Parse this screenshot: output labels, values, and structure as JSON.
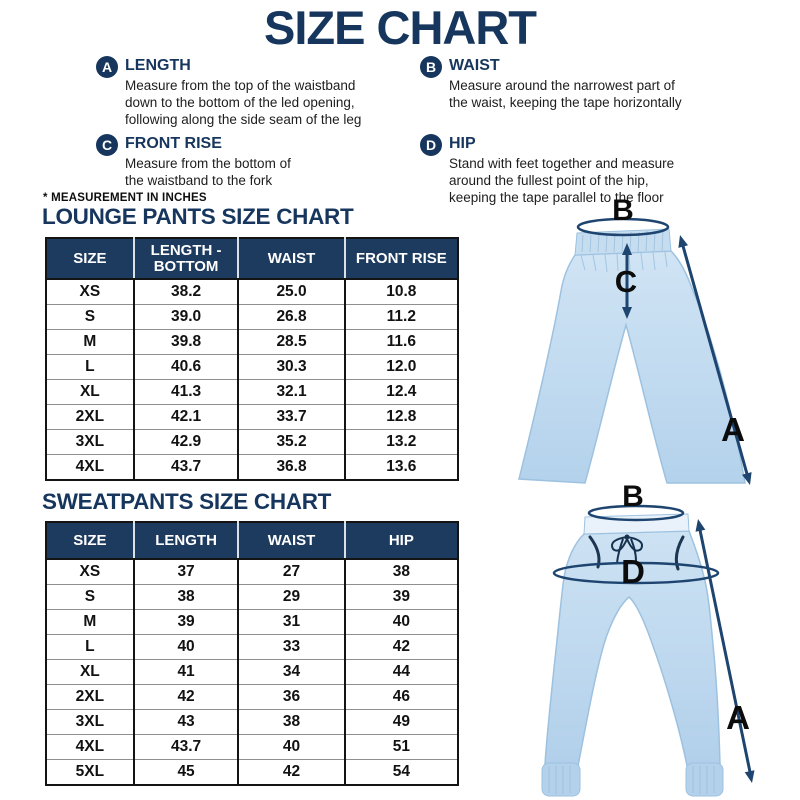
{
  "title": "SIZE CHART",
  "colors": {
    "navy": "#17365d",
    "table_header_bg": "#1d3a5f",
    "arrow": "#1e4470",
    "pants_fill": "#bdd8ee",
    "pants_outline": "#9dc2e0"
  },
  "definitions": [
    {
      "letter": "A",
      "term": "LENGTH",
      "description": "Measure from the top of the waistband down to the bottom of the led opening, following along the side seam of the leg"
    },
    {
      "letter": "B",
      "term": "WAIST",
      "description": "Measure around the narrowest part of the waist, keeping the tape horizontally"
    },
    {
      "letter": "C",
      "term": "FRONT RISE",
      "description": "Measure from the bottom of the waistband to the fork"
    },
    {
      "letter": "D",
      "term": "HIP",
      "description": "Stand with feet together and measure around the fullest point of the hip, keeping the tape parallel to the floor"
    }
  ],
  "note": "* MEASUREMENT IN INCHES",
  "lounge_chart": {
    "heading": "LOUNGE PANTS SIZE CHART",
    "columns": [
      "SIZE",
      "LENGTH - BOTTOM",
      "WAIST",
      "FRONT RISE"
    ],
    "rows": [
      [
        "XS",
        "38.2",
        "25.0",
        "10.8"
      ],
      [
        "S",
        "39.0",
        "26.8",
        "11.2"
      ],
      [
        "M",
        "39.8",
        "28.5",
        "11.6"
      ],
      [
        "L",
        "40.6",
        "30.3",
        "12.0"
      ],
      [
        "XL",
        "41.3",
        "32.1",
        "12.4"
      ],
      [
        "2XL",
        "42.1",
        "33.7",
        "12.8"
      ],
      [
        "3XL",
        "42.9",
        "35.2",
        "13.2"
      ],
      [
        "4XL",
        "43.7",
        "36.8",
        "13.6"
      ]
    ]
  },
  "sweat_chart": {
    "heading": "SWEATPANTS SIZE CHART",
    "columns": [
      "SIZE",
      "LENGTH",
      "WAIST",
      "HIP"
    ],
    "rows": [
      [
        "XS",
        "37",
        "27",
        "38"
      ],
      [
        "S",
        "38",
        "29",
        "39"
      ],
      [
        "M",
        "39",
        "31",
        "40"
      ],
      [
        "L",
        "40",
        "33",
        "42"
      ],
      [
        "XL",
        "41",
        "34",
        "44"
      ],
      [
        "2XL",
        "42",
        "36",
        "46"
      ],
      [
        "3XL",
        "43",
        "38",
        "49"
      ],
      [
        "4XL",
        "43.7",
        "40",
        "51"
      ],
      [
        "5XL",
        "45",
        "42",
        "54"
      ]
    ]
  },
  "diagrams": {
    "lounge": {
      "waist_label": "B",
      "front_rise_label": "C",
      "length_label": "A"
    },
    "sweat": {
      "waist_label": "B",
      "hip_label": "D",
      "length_label": "A"
    }
  }
}
